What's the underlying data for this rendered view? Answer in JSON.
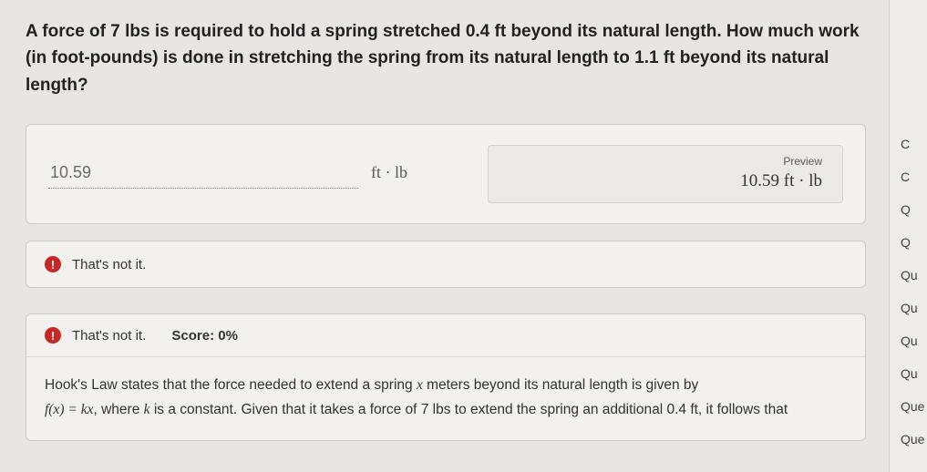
{
  "question": {
    "text": "A force of 7 lbs is required to hold a spring stretched 0.4 ft beyond its natural length. How much work (in foot-pounds) is done in stretching the spring from its natural length to 1.1 ft beyond its natural length?"
  },
  "answer": {
    "value": "10.59",
    "unit": "ft · lb"
  },
  "preview": {
    "label": "Preview",
    "value": "10.59 ft · lb"
  },
  "feedback": {
    "short": "That's not it.",
    "header": "That's not it.",
    "score_label": "Score: 0%"
  },
  "explanation": {
    "line1a": "Hook's Law states that the force needed to extend a spring ",
    "var_x": "x",
    "line1b": " meters beyond its natural length is given by ",
    "fn": "f(x) = kx",
    "line2a": ", where ",
    "var_k": "k",
    "line2b": " is a constant. Given that it takes a force of 7 lbs to extend the spring an additional 0.4 ft, it follows that"
  },
  "sidebar": {
    "items": [
      "C",
      "C",
      "Q",
      "Q",
      "Qu",
      "Qu",
      "Qu",
      "Qu",
      "Que",
      "Que"
    ]
  },
  "colors": {
    "page_bg": "#e8e6e3",
    "panel_bg": "#f3f1ee",
    "border": "#cfcbc6",
    "error": "#c62828",
    "text": "#2a2a2a"
  }
}
